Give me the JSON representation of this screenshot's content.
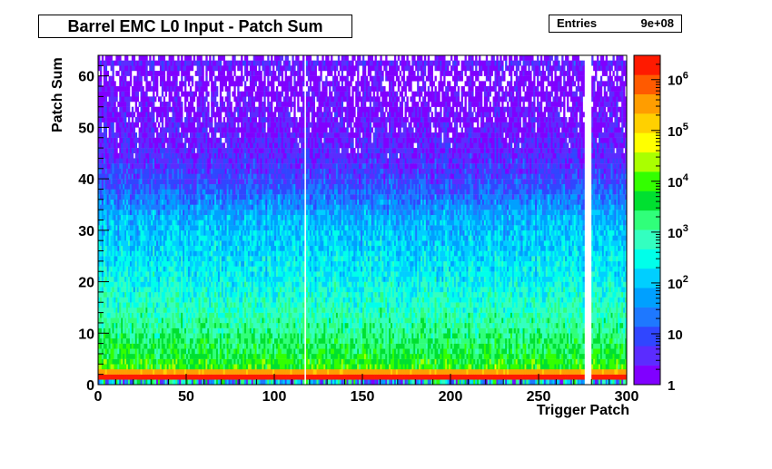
{
  "chart_data": {
    "type": "heatmap",
    "title": "Barrel EMC L0 Input - Patch Sum",
    "stats": {
      "label": "Entries",
      "value": "9e+08"
    },
    "xlabel": "Trigger Patch",
    "ylabel": "Patch Sum",
    "xlim": [
      0,
      300
    ],
    "ylim": [
      0,
      64
    ],
    "x_bins": 300,
    "y_bins": 64,
    "x_ticks": [
      "0",
      "50",
      "100",
      "150",
      "200",
      "250",
      "300"
    ],
    "y_ticks": [
      "0",
      "10",
      "20",
      "30",
      "40",
      "50",
      "60"
    ],
    "z_scale": "log",
    "zlim": [
      1,
      3000000
    ],
    "z_ticks": [
      {
        "value": 1,
        "label": "1"
      },
      {
        "value": 10,
        "label": "10"
      },
      {
        "value": 100,
        "label": "10",
        "exp": "2"
      },
      {
        "value": 1000,
        "label": "10",
        "exp": "3"
      },
      {
        "value": 10000,
        "label": "10",
        "exp": "4"
      },
      {
        "value": 100000,
        "label": "10",
        "exp": "5"
      },
      {
        "value": 1000000,
        "label": "10",
        "exp": "6"
      }
    ],
    "profile_y_vs_log10count": [
      [
        0,
        4.6
      ],
      [
        1,
        6.3
      ],
      [
        2,
        5.4
      ],
      [
        3,
        3.9
      ],
      [
        5,
        3.6
      ],
      [
        8,
        3.35
      ],
      [
        10,
        3.15
      ],
      [
        13,
        2.9
      ],
      [
        16,
        2.7
      ],
      [
        20,
        2.45
      ],
      [
        24,
        2.25
      ],
      [
        28,
        2.05
      ],
      [
        32,
        1.85
      ],
      [
        35,
        1.45
      ],
      [
        38,
        1.05
      ],
      [
        41,
        0.75
      ],
      [
        45,
        0.5
      ],
      [
        50,
        0.3
      ],
      [
        55,
        0.15
      ],
      [
        60,
        0.05
      ],
      [
        63,
        0.7
      ]
    ],
    "empty_columns": [
      117,
      276,
      277,
      278,
      279
    ],
    "palette": [
      "#8000ff",
      "#5b2cff",
      "#3046ff",
      "#1e78ff",
      "#00a0ff",
      "#00cfff",
      "#00ffea",
      "#33ffc0",
      "#30ff7a",
      "#00e030",
      "#33ff00",
      "#aaff00",
      "#ffff00",
      "#ffd000",
      "#ff9d00",
      "#ff5a00",
      "#ff1a00"
    ]
  }
}
